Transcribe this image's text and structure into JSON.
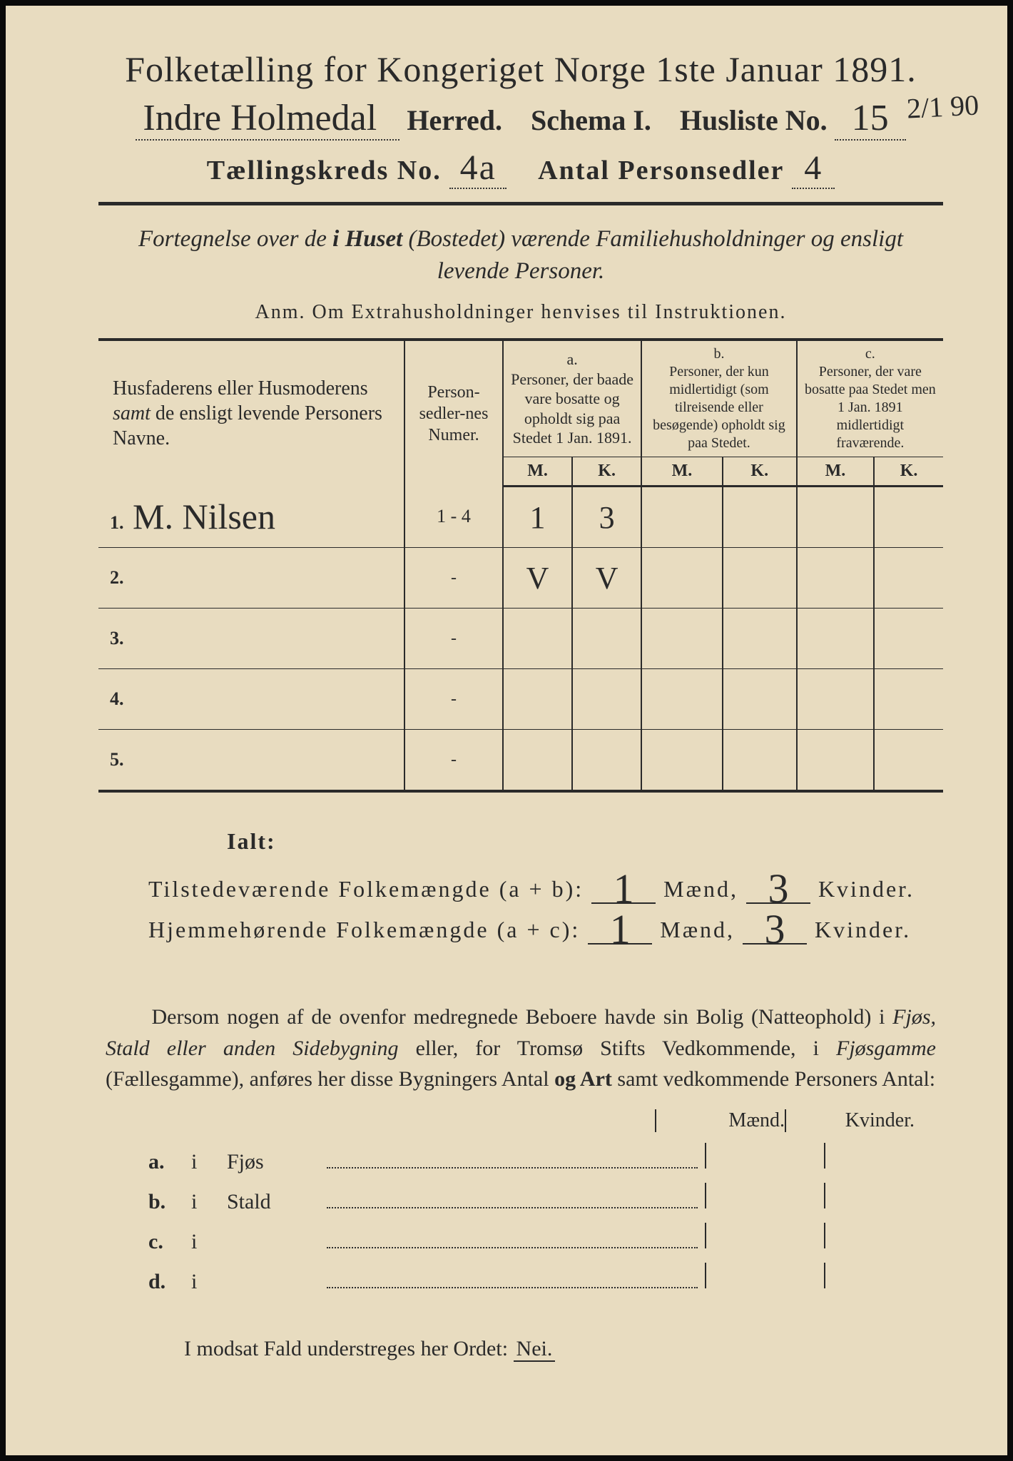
{
  "title": "Folketælling for Kongeriget Norge 1ste Januar 1891.",
  "line2": {
    "herred_hand": "Indre Holmedal",
    "herred_label": "Herred.",
    "schema_label": "Schema I.",
    "husliste_label": "Husliste No.",
    "husliste_hand": "15",
    "side_note": "2/1 90"
  },
  "line3": {
    "kreds_label": "Tællingskreds No.",
    "kreds_hand": "4a",
    "sedler_label": "Antal Personsedler",
    "sedler_hand": "4"
  },
  "fortegnelse_pre": "Fortegnelse over de ",
  "fortegnelse_bold": "i Huset",
  "fortegnelse_paren": " (Bostedet) ",
  "fortegnelse_rest": "værende Familiehusholdninger og ensligt levende Personer.",
  "anm": "Anm.   Om Extrahusholdninger henvises til Instruktionen.",
  "table": {
    "col_names": "Husfaderens eller Husmoderens samt de ensligt levende Personers Navne.",
    "col_numer": "Person-sedler-nes Numer.",
    "col_a_label": "a.",
    "col_a": "Personer, der baade vare bosatte og opholdt sig paa Stedet 1 Jan. 1891.",
    "col_b_label": "b.",
    "col_b": "Personer, der kun midlertidigt (som tilreisende eller besøgende) opholdt sig paa Stedet.",
    "col_c_label": "c.",
    "col_c": "Personer, der vare bosatte paa Stedet men 1 Jan. 1891 midlertidigt fraværende.",
    "m": "M.",
    "k": "K.",
    "rows": [
      {
        "n": "1.",
        "name": "M. Nilsen",
        "numer": "1 - 4",
        "am": "1",
        "ak": "3",
        "bm": "",
        "bk": "",
        "cm": "",
        "ck": ""
      },
      {
        "n": "2.",
        "name": "",
        "numer": "-",
        "am": "V",
        "ak": "V",
        "bm": "",
        "bk": "",
        "cm": "",
        "ck": ""
      },
      {
        "n": "3.",
        "name": "",
        "numer": "-",
        "am": "",
        "ak": "",
        "bm": "",
        "bk": "",
        "cm": "",
        "ck": ""
      },
      {
        "n": "4.",
        "name": "",
        "numer": "-",
        "am": "",
        "ak": "",
        "bm": "",
        "bk": "",
        "cm": "",
        "ck": ""
      },
      {
        "n": "5.",
        "name": "",
        "numer": "-",
        "am": "",
        "ak": "",
        "bm": "",
        "bk": "",
        "cm": "",
        "ck": ""
      }
    ]
  },
  "ialt": {
    "label": "Ialt:",
    "line1_pre": "Tilstedeværende Folkemængde (a + b):",
    "line1_m": "1",
    "maend": "Mænd,",
    "line1_k": "3",
    "kvinder": "Kvinder.",
    "line2_pre": "Hjemmehørende Folkemængde (a + c):",
    "line2_m": "1",
    "line2_k": "3"
  },
  "dersom": "Dersom nogen af de ovenfor medregnede Beboere havde sin Bolig (Natteophold) i Fjøs, Stald eller anden Sidebygning eller, for Tromsø Stifts Vedkommende, i Fjøsgamme (Fællesgamme), anføres her disse Bygningers Antal og Art samt vedkommende Personers Antal:",
  "mk": {
    "maend": "Mænd.",
    "kvinder": "Kvinder."
  },
  "abcd": [
    {
      "l": "a.",
      "i": "i",
      "w": "Fjøs"
    },
    {
      "l": "b.",
      "i": "i",
      "w": "Stald"
    },
    {
      "l": "c.",
      "i": "i",
      "w": ""
    },
    {
      "l": "d.",
      "i": "i",
      "w": ""
    }
  ],
  "modsat_pre": "I modsat Fald understreges her Ordet: ",
  "modsat_nei": "Nei."
}
